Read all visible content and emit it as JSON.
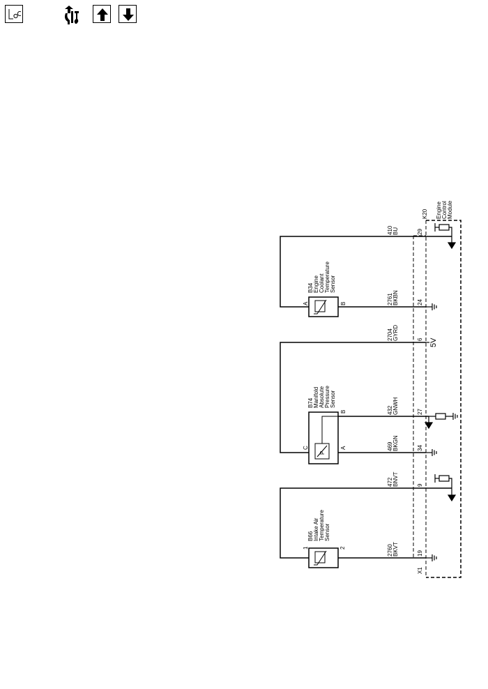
{
  "toolbar": {
    "locator_label": "LOC",
    "icons": [
      "locator-icon",
      "tools-icon",
      "arrow-up-icon",
      "arrow-down-icon"
    ]
  },
  "diagram": {
    "module": {
      "id": "K20",
      "line1": "Engine",
      "line2": "Control",
      "line3": "Module"
    },
    "connector": "X1",
    "voltage": "5V",
    "sensors": {
      "iat": {
        "id": "B66",
        "line1": "Intake Air",
        "line2": "Temperature",
        "line3": "Sensor",
        "pin_top": "1",
        "pin_bottom": "2"
      },
      "map": {
        "id": "B74",
        "line1": "Manifold",
        "line2": "Absolute",
        "line3": "Pressure",
        "line4": "Sensor",
        "pin_c": "C",
        "pin_a": "A",
        "pin_b": "B",
        "symbol": "P"
      },
      "ect": {
        "id": "B34",
        "line1": "Engine",
        "line2": "Coolant",
        "line3": "Temperature",
        "line4": "Sensor",
        "pin_a": "A",
        "pin_b": "B"
      }
    },
    "wires": [
      {
        "circuit": "2760",
        "color": "BKVT",
        "pin": "19"
      },
      {
        "circuit": "472",
        "color": "BNVT",
        "pin": "9"
      },
      {
        "circuit": "469",
        "color": "BKGN",
        "pin": "34"
      },
      {
        "circuit": "432",
        "color": "GNWH",
        "pin": "27"
      },
      {
        "circuit": "2704",
        "color": "GYRD",
        "pin": "6"
      },
      {
        "circuit": "2761",
        "color": "BKBN",
        "pin": "24"
      },
      {
        "circuit": "410",
        "color": "BU",
        "pin": "29"
      }
    ]
  }
}
